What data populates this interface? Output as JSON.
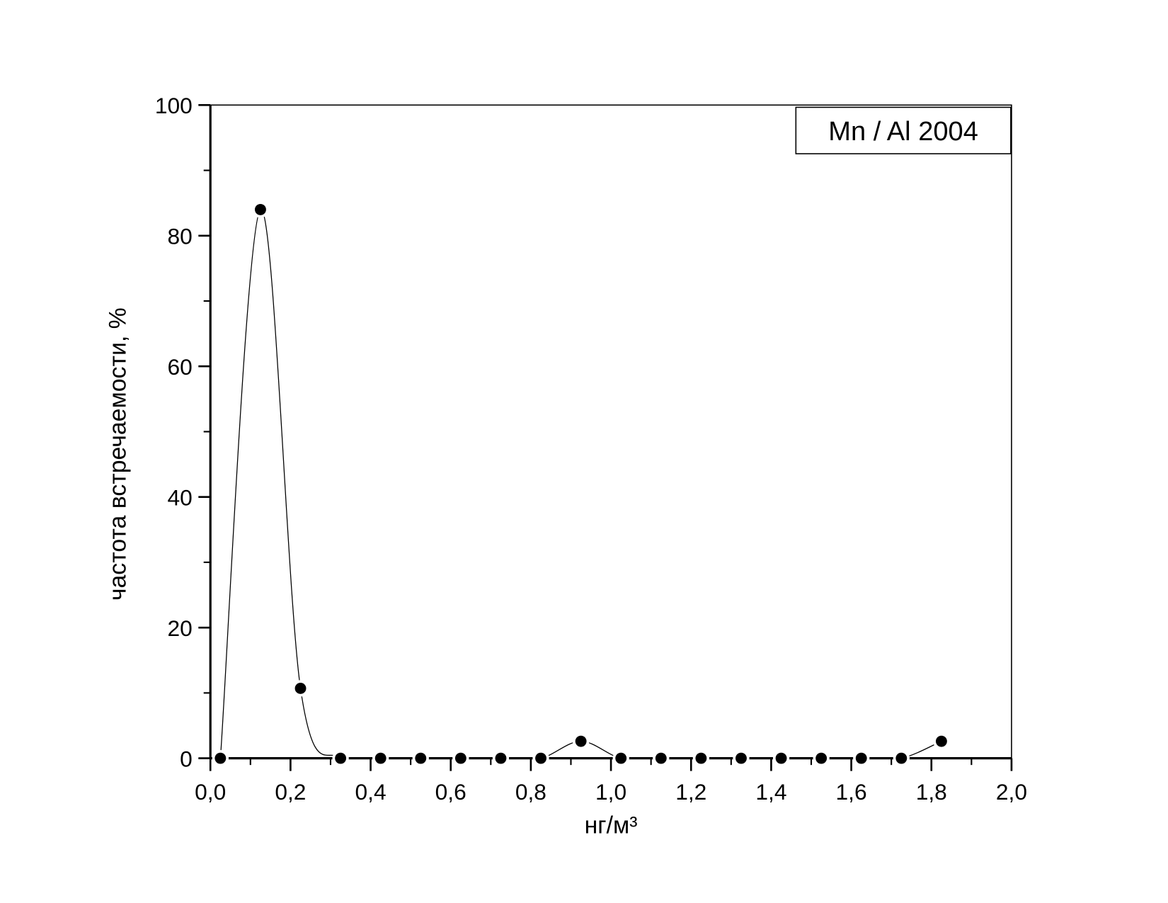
{
  "chart_data": {
    "type": "line",
    "xlabel": "нг/м³",
    "ylabel": "частота встречаемости, %",
    "x": [
      0.025,
      0.125,
      0.225,
      0.325,
      0.425,
      0.525,
      0.625,
      0.725,
      0.825,
      0.925,
      1.025,
      1.125,
      1.225,
      1.325,
      1.425,
      1.525,
      1.625,
      1.725,
      1.825
    ],
    "series": [
      {
        "name": "Mn / Al 2004",
        "color": "#000000",
        "values": [
          0,
          84,
          10.7,
          0,
          0,
          0,
          0,
          0,
          0,
          2.6,
          0,
          0,
          0,
          0,
          0,
          0,
          0,
          0,
          2.6
        ]
      }
    ],
    "xlim": [
      0,
      2
    ],
    "xticks": [
      {
        "value": 0,
        "label": "0,0"
      },
      {
        "value": 0.2,
        "label": "0,2"
      },
      {
        "value": 0.4,
        "label": "0,4"
      },
      {
        "value": 0.6,
        "label": "0,6"
      },
      {
        "value": 0.8,
        "label": "0,8"
      },
      {
        "value": 1,
        "label": "1,0"
      },
      {
        "value": 1.2,
        "label": "1,2"
      },
      {
        "value": 1.4,
        "label": "1,4"
      },
      {
        "value": 1.6,
        "label": "1,6"
      },
      {
        "value": 1.8,
        "label": "1,8"
      },
      {
        "value": 2,
        "label": "2,0"
      }
    ],
    "ylim": [
      0,
      100
    ],
    "yticks": [
      0,
      20,
      40,
      60,
      80,
      100
    ],
    "grid": false,
    "legend": "top-right"
  }
}
